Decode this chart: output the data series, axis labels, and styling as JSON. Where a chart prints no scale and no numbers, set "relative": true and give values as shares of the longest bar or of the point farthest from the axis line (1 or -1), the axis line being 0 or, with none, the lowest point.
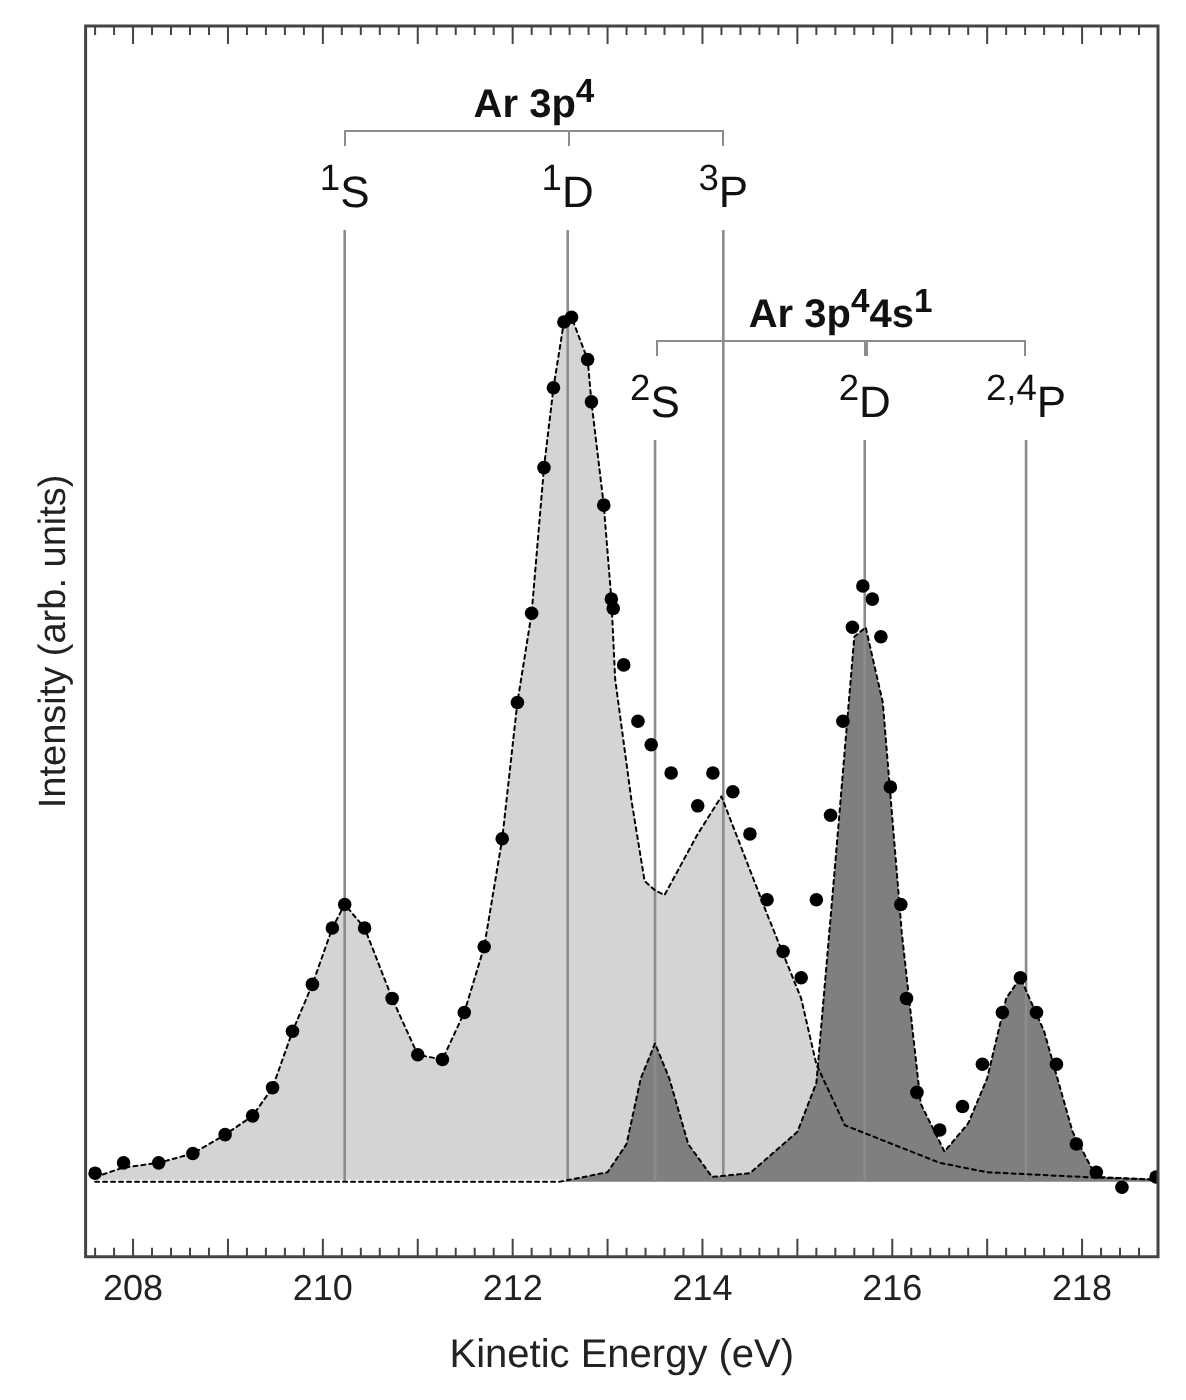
{
  "chart_data": {
    "type": "scatter",
    "xlabel": "Kinetic Energy (eV)",
    "ylabel": "Intensity (arb. units)",
    "relative": true,
    "xlim": [
      207.5,
      218.8
    ],
    "xticks": [
      {
        "value": 207.6,
        "label": null
      },
      {
        "value": 207.8,
        "label": null
      },
      208,
      {
        "value": 208.2,
        "label": null
      },
      {
        "value": 208.4,
        "label": null
      },
      {
        "value": 208.6,
        "label": null
      },
      {
        "value": 208.8,
        "label": null
      },
      {
        "value": 209,
        "label": null
      },
      {
        "value": 209.2,
        "label": null
      },
      {
        "value": 209.4,
        "label": null
      },
      {
        "value": 209.6,
        "label": null
      },
      {
        "value": 209.8,
        "label": null
      },
      210,
      {
        "value": 210.2,
        "label": null
      },
      {
        "value": 210.4,
        "label": null
      },
      {
        "value": 210.6,
        "label": null
      },
      {
        "value": 210.8,
        "label": null
      },
      {
        "value": 211,
        "label": null
      },
      {
        "value": 211.2,
        "label": null
      },
      {
        "value": 211.4,
        "label": null
      },
      {
        "value": 211.6,
        "label": null
      },
      {
        "value": 211.8,
        "label": null
      },
      212,
      {
        "value": 212.2,
        "label": null
      },
      {
        "value": 212.4,
        "label": null
      },
      {
        "value": 212.6,
        "label": null
      },
      {
        "value": 212.8,
        "label": null
      },
      {
        "value": 213,
        "label": null
      },
      {
        "value": 213.2,
        "label": null
      },
      {
        "value": 213.4,
        "label": null
      },
      {
        "value": 213.6,
        "label": null
      },
      {
        "value": 213.8,
        "label": null
      },
      214,
      {
        "value": 214.2,
        "label": null
      },
      {
        "value": 214.4,
        "label": null
      },
      {
        "value": 214.6,
        "label": null
      },
      {
        "value": 214.8,
        "label": null
      },
      {
        "value": 215,
        "label": null
      },
      {
        "value": 215.2,
        "label": null
      },
      {
        "value": 215.4,
        "label": null
      },
      {
        "value": 215.6,
        "label": null
      },
      {
        "value": 215.8,
        "label": null
      },
      216,
      {
        "value": 216.2,
        "label": null
      },
      {
        "value": 216.4,
        "label": null
      },
      {
        "value": 216.6,
        "label": null
      },
      {
        "value": 216.8,
        "label": null
      },
      {
        "value": 217,
        "label": null
      },
      {
        "value": 217.2,
        "label": null
      },
      {
        "value": 217.4,
        "label": null
      },
      {
        "value": 217.6,
        "label": null
      },
      {
        "value": 217.8,
        "label": null
      },
      218,
      {
        "value": 218.2,
        "label": null
      },
      {
        "value": 218.4,
        "label": null
      },
      {
        "value": 218.6,
        "label": null
      },
      {
        "value": 218.8,
        "label": null
      }
    ],
    "grid": false,
    "legend": false,
    "tick_labels": "x",
    "series": [
      {
        "type": "area",
        "color": "#d4d4d4",
        "line_style": "dotted",
        "marker": "none",
        "x": [
          207.6,
          207.9,
          208.27,
          208.63,
          208.97,
          209.26,
          209.47,
          209.68,
          209.89,
          210.1,
          210.23,
          210.44,
          210.73,
          211.0,
          211.26,
          211.49,
          211.7,
          211.89,
          212.05,
          212.2,
          212.33,
          212.43,
          212.54,
          212.62,
          212.79,
          212.83,
          212.96,
          213.04,
          213.08,
          213.25,
          213.39,
          213.5,
          213.6,
          213.95,
          214.2,
          214.68,
          215.04,
          215.2,
          215.5,
          216.0,
          216.5,
          217.0,
          218.0,
          218.8
        ],
        "values": [
          0.085,
          0.095,
          0.1,
          0.11,
          0.13,
          0.15,
          0.18,
          0.24,
          0.29,
          0.35,
          0.375,
          0.35,
          0.275,
          0.215,
          0.21,
          0.26,
          0.33,
          0.445,
          0.59,
          0.685,
          0.84,
          0.925,
          0.995,
          1.0,
          0.955,
          0.91,
          0.8,
          0.7,
          0.615,
          0.487,
          0.4,
          0.39,
          0.385,
          0.45,
          0.49,
          0.365,
          0.275,
          0.205,
          0.14,
          0.12,
          0.1,
          0.09,
          0.085,
          0.082
        ]
      },
      {
        "type": "area",
        "color": "#7f7f7f",
        "line_style": "dotted",
        "marker": "none",
        "x": [
          207.6,
          212.5,
          213.0,
          213.2,
          213.35,
          213.5,
          213.65,
          213.85,
          214.1,
          214.5,
          215.0,
          215.2,
          215.4,
          215.6,
          215.72,
          215.9,
          216.1,
          216.3,
          216.55,
          216.8,
          217.0,
          217.2,
          217.35,
          217.6,
          217.9,
          218.15,
          218.8
        ],
        "values": [
          0.08,
          0.08,
          0.09,
          0.12,
          0.19,
          0.227,
          0.19,
          0.12,
          0.085,
          0.089,
          0.133,
          0.185,
          0.42,
          0.66,
          0.67,
          0.59,
          0.345,
          0.163,
          0.112,
          0.142,
          0.19,
          0.275,
          0.297,
          0.24,
          0.133,
          0.085,
          0.082
        ]
      },
      {
        "color": "#000000",
        "marker": "circle",
        "x": [
          207.6,
          207.9,
          208.27,
          208.63,
          208.97,
          209.26,
          209.47,
          209.68,
          209.89,
          210.1,
          210.23,
          210.44,
          210.73,
          211.0,
          211.26,
          211.49,
          211.7,
          211.89,
          212.05,
          212.2,
          212.33,
          212.43,
          212.54,
          212.62,
          212.79,
          212.83,
          212.96,
          213.04,
          213.06,
          213.17,
          213.32,
          213.46,
          213.67,
          213.95,
          214.11,
          214.32,
          214.5,
          214.68,
          214.85,
          215.04,
          215.2,
          215.35,
          215.48,
          215.58,
          215.69,
          215.79,
          215.88,
          215.98,
          216.09,
          216.15,
          216.26,
          216.5,
          216.74,
          216.95,
          217.16,
          217.35,
          217.52,
          217.73,
          217.94,
          218.15,
          218.42,
          218.78
        ],
        "values": [
          0.089,
          0.1,
          0.1,
          0.11,
          0.13,
          0.15,
          0.18,
          0.24,
          0.29,
          0.35,
          0.375,
          0.35,
          0.275,
          0.215,
          0.21,
          0.26,
          0.33,
          0.445,
          0.59,
          0.685,
          0.84,
          0.925,
          0.995,
          1.0,
          0.955,
          0.91,
          0.8,
          0.7,
          0.69,
          0.63,
          0.57,
          0.545,
          0.515,
          0.48,
          0.515,
          0.495,
          0.45,
          0.38,
          0.325,
          0.297,
          0.38,
          0.47,
          0.57,
          0.67,
          0.714,
          0.7,
          0.66,
          0.5,
          0.375,
          0.275,
          0.175,
          0.135,
          0.16,
          0.205,
          0.26,
          0.297,
          0.26,
          0.205,
          0.12,
          0.09,
          0.074,
          0.085
        ]
      }
    ],
    "ref_lines": [
      {
        "axis": "x",
        "value": 210.23,
        "label": "$^{1}$S",
        "color": "#8c8c8c"
      },
      {
        "axis": "x",
        "value": 212.58,
        "label": "$^{1}$D",
        "color": "#8c8c8c"
      },
      {
        "axis": "x",
        "value": 214.22,
        "label": "$^{3}$P",
        "color": "#8c8c8c"
      },
      {
        "axis": "x",
        "value": 213.5,
        "label": "$^{2}$S",
        "color": "#8c8c8c"
      },
      {
        "axis": "x",
        "value": 215.71,
        "label": "$^{2}$D",
        "color": "#8c8c8c"
      },
      {
        "axis": "x",
        "value": 217.41,
        "label": "$^{2,4}$P",
        "color": "#8c8c8c"
      }
    ],
    "annotations": [
      "Ar 3p$^{4}$",
      "Ar 3p$^{4}$4s$^{1}$"
    ]
  }
}
